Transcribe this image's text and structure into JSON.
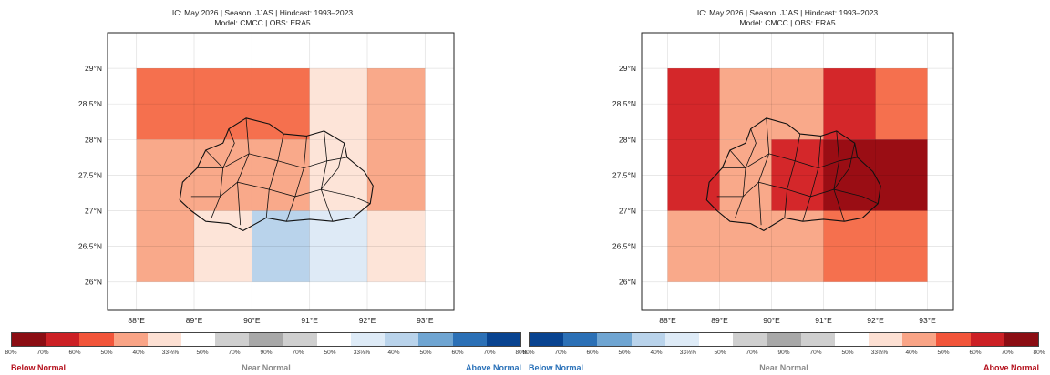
{
  "panels": [
    {
      "header_line1": "IC: May 2026  |  Season: JJAS  |  Hindcast: 1993–2023",
      "header_line2": "Model: CMCC  |  OBS: ERA5",
      "lat_labels": [
        "29°N",
        "28.5°N",
        "28°N",
        "27.5°N",
        "27°N",
        "26.5°N",
        "26°N"
      ],
      "lon_labels": [
        "88°E",
        "89°E",
        "90°E",
        "91°E",
        "92°E",
        "93°E"
      ],
      "cells": [
        {
          "lon0": 88,
          "lon1": 91,
          "lat0": 28,
          "lat1": 29,
          "color": "#f5704e"
        },
        {
          "lon0": 91,
          "lon1": 92,
          "lat0": 28,
          "lat1": 29,
          "color": "#fde4d8"
        },
        {
          "lon0": 92,
          "lon1": 93,
          "lat0": 27,
          "lat1": 29,
          "color": "#f9a98a"
        },
        {
          "lon0": 88,
          "lon1": 91,
          "lat0": 27,
          "lat1": 28,
          "color": "#f9a98a"
        },
        {
          "lon0": 91,
          "lon1": 92,
          "lat0": 27,
          "lat1": 28,
          "color": "#fde4d8"
        },
        {
          "lon0": 88,
          "lon1": 89,
          "lat0": 26,
          "lat1": 27,
          "color": "#f9a98a"
        },
        {
          "lon0": 89,
          "lon1": 90,
          "lat0": 26,
          "lat1": 27,
          "color": "#fde4d8"
        },
        {
          "lon0": 90,
          "lon1": 91,
          "lat0": 26,
          "lat1": 27,
          "color": "#b9d3eb"
        },
        {
          "lon0": 91,
          "lon1": 92,
          "lat0": 26,
          "lat1": 27,
          "color": "#deeaf6"
        },
        {
          "lon0": 92,
          "lon1": 93,
          "lat0": 26,
          "lat1": 27,
          "color": "#fde4d8"
        }
      ],
      "colorbar": {
        "colors": [
          "#8b0d13",
          "#cc2025",
          "#f2553a",
          "#f9a486",
          "#fde0d3",
          "#ffffff",
          "#cfcfcf",
          "#a8a8a8",
          "#cfcfcf",
          "#ffffff",
          "#deebf7",
          "#b9d3eb",
          "#6fa5d2",
          "#2b70b6",
          "#084390"
        ],
        "ticks": [
          "80%",
          "70%",
          "60%",
          "50%",
          "40%",
          "33⅓%",
          "50%",
          "70%",
          "90%",
          "70%",
          "50%",
          "33⅓%",
          "40%",
          "50%",
          "60%",
          "70%",
          "80%"
        ],
        "left_label": "Below Normal",
        "middle_label": "Near Normal",
        "right_label": "Above Normal",
        "left_color": "#b4101c",
        "right_color": "#2870b8"
      }
    },
    {
      "header_line1": "IC: May 2026  |  Season: JJAS  |  Hindcast: 1993–2023",
      "header_line2": "Model: CMCC  |  OBS: ERA5",
      "lat_labels": [
        "29°N",
        "28.5°N",
        "28°N",
        "27.5°N",
        "27°N",
        "26.5°N",
        "26°N"
      ],
      "lon_labels": [
        "88°E",
        "89°E",
        "90°E",
        "91°E",
        "92°E",
        "93°E"
      ],
      "cells": [
        {
          "lon0": 88,
          "lon1": 89,
          "lat0": 27,
          "lat1": 29,
          "color": "#d4272a"
        },
        {
          "lon0": 89,
          "lon1": 91,
          "lat0": 28,
          "lat1": 29,
          "color": "#f9a98a"
        },
        {
          "lon0": 91,
          "lon1": 92,
          "lat0": 28,
          "lat1": 29,
          "color": "#d4272a"
        },
        {
          "lon0": 92,
          "lon1": 93,
          "lat0": 28,
          "lat1": 29,
          "color": "#f5704e"
        },
        {
          "lon0": 89,
          "lon1": 90,
          "lat0": 27,
          "lat1": 28,
          "color": "#f9a98a"
        },
        {
          "lon0": 90,
          "lon1": 91,
          "lat0": 27,
          "lat1": 28,
          "color": "#d4272a"
        },
        {
          "lon0": 91,
          "lon1": 93,
          "lat0": 27,
          "lat1": 28,
          "color": "#9a0d14"
        },
        {
          "lon0": 88,
          "lon1": 91,
          "lat0": 26,
          "lat1": 27,
          "color": "#f9a98a"
        },
        {
          "lon0": 91,
          "lon1": 93,
          "lat0": 26,
          "lat1": 27,
          "color": "#f5704e"
        }
      ],
      "colorbar": {
        "colors": [
          "#084390",
          "#2b70b6",
          "#6fa5d2",
          "#b9d3eb",
          "#deebf7",
          "#ffffff",
          "#cfcfcf",
          "#a8a8a8",
          "#cfcfcf",
          "#ffffff",
          "#fde0d3",
          "#f9a486",
          "#f2553a",
          "#cc2025",
          "#8b0d13"
        ],
        "ticks": [
          "80%",
          "70%",
          "60%",
          "50%",
          "40%",
          "33⅓%",
          "50%",
          "70%",
          "90%",
          "70%",
          "50%",
          "33⅓%",
          "40%",
          "50%",
          "60%",
          "70%",
          "80%"
        ],
        "left_label": "Below Normal",
        "middle_label": "Near Normal",
        "right_label": "Above Normal",
        "left_color": "#2870b8",
        "right_color": "#b4101c"
      }
    }
  ]
}
